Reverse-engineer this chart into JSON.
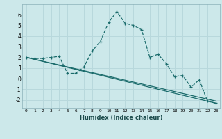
{
  "xlabel": "Humidex (Indice chaleur)",
  "ylabel": "",
  "background_color": "#cce8ea",
  "grid_color": "#b8d8dc",
  "line_color": "#1a6b6b",
  "xlim": [
    -0.5,
    23.5
  ],
  "ylim": [
    -2.8,
    7.0
  ],
  "xtick_labels": [
    "0",
    "1",
    "2",
    "3",
    "4",
    "5",
    "6",
    "7",
    "8",
    "9",
    "10",
    "11",
    "12",
    "13",
    "14",
    "15",
    "16",
    "17",
    "18",
    "19",
    "20",
    "21",
    "22",
    "23"
  ],
  "ytick_values": [
    -2,
    -1,
    0,
    1,
    2,
    3,
    4,
    5,
    6
  ],
  "series": [
    {
      "x": [
        0,
        1,
        2,
        3,
        4,
        5,
        6,
        7,
        8,
        9,
        10,
        11,
        12,
        13,
        14,
        15,
        16,
        17,
        18,
        19,
        20,
        21,
        22,
        23
      ],
      "y": [
        2.0,
        1.9,
        1.9,
        2.0,
        2.1,
        0.5,
        0.5,
        1.1,
        2.6,
        3.5,
        5.3,
        6.3,
        5.2,
        5.0,
        4.6,
        2.0,
        2.3,
        1.4,
        0.2,
        0.3,
        -0.8,
        -0.1,
        -2.1,
        -2.3
      ]
    },
    {
      "x": [
        0,
        23
      ],
      "y": [
        2.0,
        -2.3
      ]
    },
    {
      "x": [
        0,
        23
      ],
      "y": [
        2.0,
        -2.1
      ]
    }
  ]
}
